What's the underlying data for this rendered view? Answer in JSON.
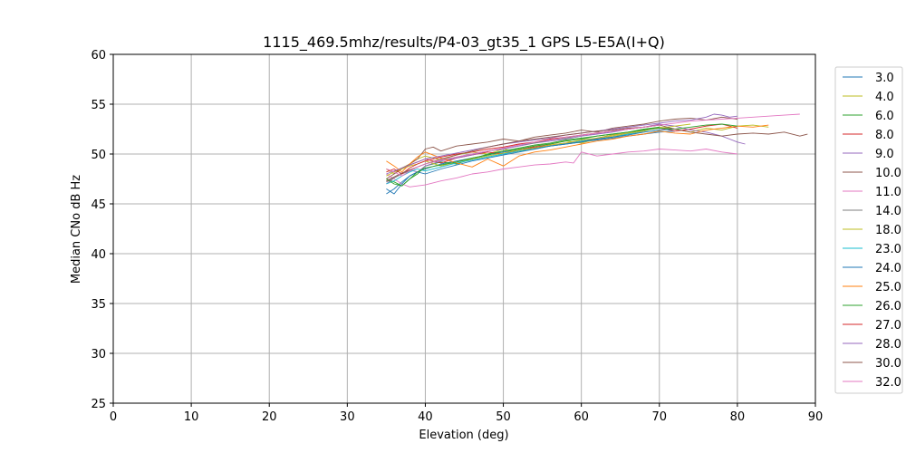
{
  "chart_data": {
    "type": "line",
    "title": "1115_469.5mhz/results/P4-03_gt35_1 GPS L5-E5A(I+Q)",
    "xlabel": "Elevation (deg)",
    "ylabel": "Median CNo dB Hz",
    "xlim": [
      0,
      90
    ],
    "ylim": [
      25,
      60
    ],
    "xticks": [
      0,
      10,
      20,
      30,
      40,
      50,
      60,
      70,
      80,
      90
    ],
    "yticks": [
      25,
      30,
      35,
      40,
      45,
      50,
      55,
      60
    ],
    "grid": true,
    "legend_position": "right",
    "series": [
      {
        "name": "3.0",
        "color": "#1f77b4",
        "x": [
          35,
          36,
          37,
          38,
          39,
          40,
          42,
          44,
          46,
          48,
          50,
          52,
          54,
          56,
          58,
          60,
          62,
          64,
          66,
          68,
          70,
          72
        ],
        "y": [
          46.0,
          46.5,
          47.2,
          47.8,
          48.2,
          48.5,
          49.0,
          49.3,
          49.6,
          49.9,
          50.2,
          50.4,
          50.6,
          50.8,
          51.0,
          51.2,
          51.4,
          51.6,
          51.8,
          52.0,
          52.2,
          52.3
        ]
      },
      {
        "name": "4.0",
        "color": "#bcbd22",
        "x": [
          35,
          36,
          37,
          38,
          39,
          40,
          42,
          44,
          46,
          48,
          50,
          52,
          54,
          56,
          58,
          60,
          62,
          64,
          66,
          68,
          70,
          72,
          74,
          76,
          78,
          80,
          82,
          84
        ],
        "y": [
          48.5,
          48.0,
          48.6,
          49.0,
          49.5,
          49.8,
          49.4,
          49.9,
          50.2,
          50.0,
          50.5,
          50.2,
          50.8,
          51.0,
          51.3,
          51.1,
          51.5,
          51.8,
          52.0,
          52.3,
          52.7,
          52.5,
          52.2,
          52.6,
          52.4,
          52.8,
          52.9,
          52.7
        ]
      },
      {
        "name": "6.0",
        "color": "#2ca02c",
        "x": [
          35,
          36,
          37,
          38,
          39,
          40,
          42,
          44,
          46,
          48,
          50,
          52,
          54,
          56,
          58,
          60,
          62,
          64,
          66,
          68,
          70
        ],
        "y": [
          47.5,
          47.2,
          46.8,
          47.5,
          48.0,
          48.8,
          49.2,
          49.0,
          49.5,
          50.0,
          50.3,
          50.5,
          50.8,
          51.0,
          51.3,
          51.5,
          51.8,
          52.0,
          52.2,
          52.5,
          52.7
        ]
      },
      {
        "name": "8.0",
        "color": "#d62728",
        "x": [
          35,
          36,
          37,
          38,
          39,
          40,
          42,
          44,
          46,
          48,
          50,
          52,
          54,
          56,
          58,
          60,
          62,
          64,
          66,
          68,
          70,
          72,
          74,
          76,
          78,
          80
        ],
        "y": [
          48.5,
          48.2,
          48.6,
          48.9,
          49.2,
          49.5,
          49.1,
          49.6,
          49.9,
          50.2,
          50.0,
          50.4,
          50.7,
          50.9,
          51.1,
          51.3,
          51.6,
          51.9,
          52.1,
          52.4,
          52.6,
          52.3,
          52.5,
          52.8,
          53.0,
          52.6
        ]
      },
      {
        "name": "9.0",
        "color": "#9467bd",
        "x": [
          35,
          36,
          37,
          38,
          39,
          40,
          42,
          44,
          46,
          48,
          50,
          52,
          54,
          56,
          58,
          60,
          62,
          64,
          66,
          68,
          70,
          72,
          74,
          76,
          78,
          79,
          80,
          81
        ],
        "y": [
          47.0,
          47.6,
          48.0,
          48.4,
          48.2,
          48.8,
          49.3,
          49.6,
          49.9,
          50.3,
          50.5,
          50.8,
          51.1,
          51.3,
          51.5,
          51.8,
          52.0,
          52.2,
          52.5,
          52.7,
          53.0,
          52.8,
          52.4,
          52.2,
          51.8,
          51.5,
          51.2,
          51.0
        ]
      },
      {
        "name": "10.0",
        "color": "#8c564b",
        "x": [
          35,
          36,
          37,
          38,
          39,
          40,
          41,
          42,
          44,
          46,
          48,
          50,
          52,
          54,
          56,
          58,
          60,
          62,
          64,
          66,
          68,
          70,
          72,
          74,
          76,
          78,
          80
        ],
        "y": [
          47.5,
          48.0,
          48.5,
          49.0,
          49.5,
          50.5,
          50.7,
          50.3,
          50.8,
          51.0,
          51.2,
          51.5,
          51.3,
          51.7,
          51.9,
          52.1,
          52.4,
          52.2,
          52.6,
          52.8,
          53.0,
          53.3,
          53.5,
          53.6,
          53.4,
          53.7,
          53.5
        ]
      },
      {
        "name": "11.0",
        "color": "#e377c2",
        "x": [
          35,
          36,
          37,
          38,
          39,
          40,
          42,
          44,
          46,
          48,
          50,
          52,
          54,
          56,
          58,
          59,
          60,
          62,
          64,
          66,
          68,
          70,
          72,
          74,
          76,
          78,
          80
        ],
        "y": [
          48.0,
          47.5,
          47.0,
          46.7,
          46.8,
          46.9,
          47.3,
          47.6,
          48.0,
          48.2,
          48.5,
          48.7,
          48.9,
          49.0,
          49.2,
          49.1,
          50.2,
          49.8,
          50.0,
          50.2,
          50.3,
          50.5,
          50.4,
          50.3,
          50.5,
          50.2,
          50.0
        ]
      },
      {
        "name": "14.0",
        "color": "#7f7f7f",
        "x": [
          35,
          36,
          37,
          38,
          39,
          40,
          42,
          44,
          46,
          48,
          50,
          52,
          54,
          56,
          58,
          60,
          62,
          64,
          66,
          68,
          70
        ],
        "y": [
          47.2,
          47.6,
          48.0,
          48.3,
          48.7,
          49.0,
          49.4,
          49.7,
          50.0,
          50.3,
          50.6,
          50.9,
          51.1,
          51.4,
          51.6,
          51.9,
          52.1,
          52.3,
          52.5,
          52.7,
          52.9
        ]
      },
      {
        "name": "18.0",
        "color": "#bcbd22",
        "x": [
          35,
          36,
          37,
          38,
          39,
          40,
          42,
          44,
          46,
          48,
          50,
          52,
          54,
          56,
          58,
          60,
          62,
          64,
          66,
          68,
          70,
          72,
          74
        ],
        "y": [
          47.8,
          48.2,
          48.5,
          48.8,
          49.0,
          49.3,
          48.8,
          49.2,
          49.5,
          49.8,
          50.1,
          50.4,
          50.6,
          50.9,
          51.1,
          51.4,
          51.6,
          51.9,
          52.1,
          52.4,
          52.6,
          52.8,
          53.0
        ]
      },
      {
        "name": "23.0",
        "color": "#17becf",
        "x": [
          35,
          36,
          37,
          38,
          39,
          40,
          42,
          44,
          46,
          48,
          50,
          52,
          54,
          56,
          58,
          60,
          62,
          64,
          66,
          68,
          70
        ],
        "y": [
          47.0,
          47.3,
          47.8,
          48.2,
          48.5,
          48.3,
          48.7,
          49.1,
          49.4,
          49.7,
          50.0,
          50.3,
          50.5,
          50.8,
          51.0,
          51.3,
          51.5,
          51.7,
          52.0,
          52.2,
          52.4
        ]
      },
      {
        "name": "24.0",
        "color": "#1f77b4",
        "x": [
          35,
          36,
          37,
          38,
          39,
          40,
          42,
          44,
          46,
          48,
          50,
          52,
          54,
          56,
          58,
          60,
          62,
          64,
          66,
          68,
          70,
          72
        ],
        "y": [
          46.5,
          46.0,
          47.0,
          47.8,
          48.2,
          48.0,
          48.5,
          48.9,
          49.3,
          49.6,
          49.9,
          50.2,
          50.5,
          50.8,
          51.0,
          51.2,
          51.5,
          51.7,
          51.9,
          52.2,
          52.4,
          52.5
        ]
      },
      {
        "name": "25.0",
        "color": "#ff7f0e",
        "x": [
          35,
          36,
          37,
          38,
          39,
          40,
          42,
          44,
          46,
          48,
          50,
          52,
          54,
          56,
          58,
          60,
          62,
          64,
          66,
          68,
          70,
          72,
          74,
          76,
          78,
          80,
          82,
          84
        ],
        "y": [
          49.3,
          48.8,
          48.2,
          49.0,
          49.7,
          50.2,
          49.6,
          49.1,
          48.7,
          49.5,
          48.8,
          49.8,
          50.2,
          50.4,
          50.7,
          51.0,
          51.3,
          51.5,
          51.8,
          52.0,
          52.3,
          52.1,
          52.0,
          52.4,
          52.6,
          52.8,
          52.7,
          52.9
        ]
      },
      {
        "name": "26.0",
        "color": "#2ca02c",
        "x": [
          35,
          36,
          37,
          38,
          39,
          40,
          42,
          44,
          46,
          48,
          50,
          52,
          54,
          56,
          58,
          60,
          62,
          64,
          66,
          68,
          70,
          72,
          74,
          76,
          78,
          80
        ],
        "y": [
          47.5,
          47.0,
          46.8,
          47.5,
          48.2,
          48.6,
          48.9,
          49.2,
          49.6,
          49.9,
          50.3,
          50.6,
          50.9,
          51.1,
          51.4,
          51.6,
          51.8,
          52.0,
          52.2,
          52.4,
          52.6,
          52.5,
          52.7,
          52.9,
          53.0,
          52.8
        ]
      },
      {
        "name": "27.0",
        "color": "#d62728",
        "x": [
          35,
          36,
          37,
          38,
          39,
          40,
          42,
          44,
          46,
          48,
          50,
          52,
          54,
          56,
          58,
          60,
          62,
          64,
          66,
          68,
          70
        ],
        "y": [
          48.2,
          48.5,
          48.0,
          48.6,
          49.0,
          49.3,
          49.7,
          50.0,
          50.2,
          50.5,
          50.7,
          51.0,
          51.2,
          51.5,
          51.7,
          51.9,
          52.1,
          52.3,
          52.5,
          52.7,
          52.9
        ]
      },
      {
        "name": "28.0",
        "color": "#9467bd",
        "x": [
          35,
          36,
          37,
          38,
          39,
          40,
          42,
          44,
          46,
          48,
          50,
          52,
          54,
          56,
          58,
          60,
          62,
          64,
          66,
          68,
          70,
          72,
          74,
          76,
          77,
          78,
          79,
          80
        ],
        "y": [
          48.0,
          48.3,
          48.6,
          48.9,
          49.2,
          49.5,
          49.8,
          50.1,
          50.4,
          50.7,
          51.0,
          51.2,
          51.4,
          51.6,
          51.9,
          52.1,
          52.3,
          52.5,
          52.7,
          52.9,
          53.1,
          53.3,
          53.4,
          53.7,
          54.0,
          53.9,
          53.7,
          53.8
        ]
      },
      {
        "name": "30.0",
        "color": "#8c564b",
        "x": [
          35,
          36,
          37,
          38,
          39,
          40,
          42,
          44,
          46,
          48,
          50,
          52,
          54,
          56,
          58,
          60,
          62,
          64,
          66,
          68,
          70,
          72,
          74,
          76,
          78,
          80,
          82,
          84,
          86,
          88,
          89
        ],
        "y": [
          47.3,
          47.7,
          48.1,
          48.4,
          48.7,
          49.0,
          49.5,
          49.9,
          50.3,
          50.7,
          51.0,
          51.3,
          51.5,
          51.7,
          51.9,
          52.1,
          52.3,
          52.4,
          52.6,
          52.7,
          52.9,
          52.5,
          52.2,
          52.0,
          51.8,
          52.0,
          52.1,
          52.0,
          52.2,
          51.8,
          52.0
        ]
      },
      {
        "name": "32.0",
        "color": "#e377c2",
        "x": [
          35,
          36,
          37,
          38,
          39,
          40,
          42,
          44,
          46,
          48,
          50,
          52,
          54,
          56,
          58,
          60,
          62,
          64,
          66,
          68,
          70,
          72,
          74,
          76,
          78,
          80,
          82,
          84,
          86,
          88
        ],
        "y": [
          48.5,
          48.2,
          47.8,
          48.3,
          48.7,
          49.0,
          49.4,
          49.7,
          50.0,
          50.3,
          50.6,
          50.9,
          51.2,
          51.4,
          51.7,
          51.9,
          52.1,
          52.3,
          52.5,
          52.7,
          52.9,
          53.1,
          53.3,
          53.4,
          53.5,
          53.6,
          53.7,
          53.8,
          53.9,
          54.0
        ]
      }
    ]
  }
}
